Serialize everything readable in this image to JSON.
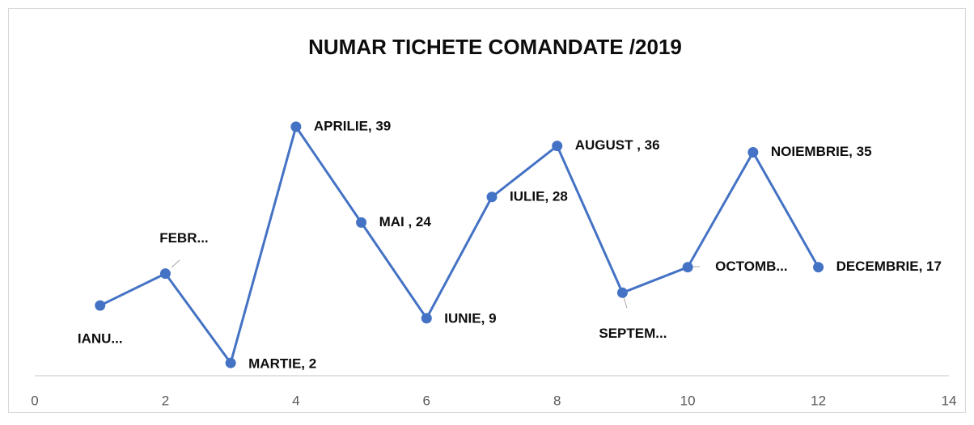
{
  "chart_data": {
    "type": "line",
    "title": "NUMAR TICHETE COMANDATE /2019",
    "x": [
      1,
      2,
      3,
      4,
      5,
      6,
      7,
      8,
      9,
      10,
      11,
      12
    ],
    "values": [
      11,
      16,
      2,
      39,
      24,
      9,
      28,
      36,
      13,
      17,
      35,
      17
    ],
    "value_labels": [
      "IANU...",
      "FEBR...",
      "MARTIE, 2",
      "APRILIE, 39",
      "MAI , 24",
      "IUNIE, 9",
      "IULIE, 28",
      "AUGUST , 36",
      "SEPTEM...",
      "OCTOMB...",
      "NOIEMBRIE, 35",
      "DECEMBRIE, 17"
    ],
    "color": "#4472c4",
    "xlim": [
      0,
      14
    ],
    "xticks": [
      0,
      2,
      4,
      6,
      8,
      10,
      12,
      14
    ],
    "ylim": [
      0,
      50
    ],
    "grid": false
  }
}
